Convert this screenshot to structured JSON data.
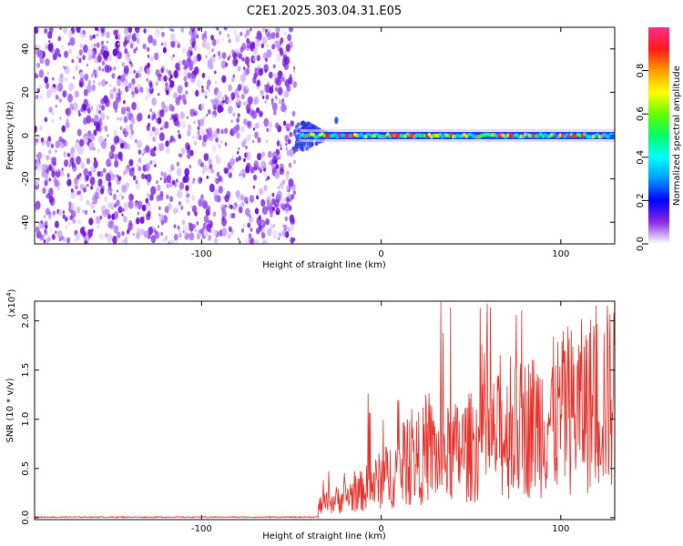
{
  "title": "C2E1.2025.303.04.31.E05",
  "colors": {
    "background": "#ffffff",
    "axis": "#000000",
    "snr_line": "#e8302a",
    "spectrum_noise": "#7b1fe0"
  },
  "chart_data": [
    {
      "type": "heatmap",
      "xlabel": "Height of straight line (km)",
      "ylabel": "Frequency (Hz)",
      "xlim": [
        -193,
        130
      ],
      "ylim": [
        -50,
        50
      ],
      "xticks": [
        -100,
        0,
        100
      ],
      "yticks": [
        -40,
        -20,
        0,
        20,
        40
      ],
      "colorbar": {
        "label": "Normalized spectral amplitude",
        "range": [
          0.0,
          1.0
        ],
        "ticks": [
          "0.0",
          "0.2",
          "0.4",
          "0.6",
          "0.8"
        ],
        "colormap": "rainbow-to-white",
        "stops": [
          "#ff2d8a",
          "#ff1a1a",
          "#ff9a00",
          "#ffff00",
          "#66ff00",
          "#00ff66",
          "#00ffff",
          "#0099ff",
          "#0000ff",
          "#8a2be2",
          "#ffffff"
        ]
      },
      "features": {
        "noise_region_x": [
          -193,
          -48
        ],
        "transition_x": [
          -48,
          -30
        ],
        "signal_line_frequency_hz": 0,
        "signal_x": [
          -45,
          130
        ]
      }
    },
    {
      "type": "line",
      "xlabel": "Height of straight line (km)",
      "ylabel": "SNR (10 * v/v)",
      "ymultiplier": "(x10",
      "ymultiplier_exp": "4",
      "ymultiplier_close": ")",
      "xlim": [
        -193,
        130
      ],
      "ylim": [
        -0.02,
        2.2
      ],
      "xticks": [
        -100,
        0,
        100
      ],
      "yticks": [
        "0.0",
        "0.5",
        "1.0",
        "1.5",
        "2.0"
      ],
      "series": [
        {
          "segments": [
            {
              "x": [
                -193,
                -35
              ],
              "level": 0.0
            },
            {
              "x": [
                -35,
                -10
              ],
              "level_range": [
                0.05,
                0.5
              ]
            },
            {
              "x": [
                -10,
                30
              ],
              "level_range": [
                0.1,
                1.3
              ]
            },
            {
              "x": [
                30,
                130
              ],
              "level_range": [
                0.3,
                2.2
              ]
            }
          ]
        }
      ]
    }
  ]
}
